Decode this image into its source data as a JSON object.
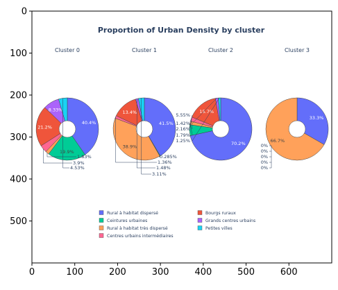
{
  "chart_data": {
    "type": "pie",
    "title": "Proportion of Urban Density by cluster",
    "categories": [
      "Rural à habitat dispersé",
      "Ceintures urbaines",
      "Rural à habitat très dispersé",
      "Centres urbains intermédiaires",
      "Bourgs ruraux",
      "Grands centres urbains",
      "Petites villes"
    ],
    "colors": [
      "#636efa",
      "#00cc96",
      "#ffa15a",
      "#ff6692",
      "#ef553b",
      "#ab63fa",
      "#19d3f3"
    ],
    "subplots": [
      {
        "name": "Cluster 0",
        "values": [
          40.4,
          19.9,
          1.83,
          3.9,
          21.2,
          8.33,
          4.53
        ]
      },
      {
        "name": "Cluster 1",
        "values": [
          41.5,
          0.285,
          38.9,
          1.36,
          13.4,
          1.48,
          3.11
        ]
      },
      {
        "name": "Cluster 2",
        "values": [
          70.2,
          5.55,
          1.79,
          2.16,
          15.7,
          1.42,
          1.25
        ]
      },
      {
        "name": "Cluster 3",
        "values": [
          33.3,
          0,
          66.7,
          0,
          0,
          0,
          0
        ]
      }
    ],
    "hole": 0.25,
    "legend_position": "bottom-center",
    "axes": {
      "x_ticks": [
        "0",
        "100",
        "200",
        "300",
        "400",
        "500",
        "600"
      ],
      "y_ticks": [
        "0",
        "100",
        "200",
        "300",
        "400",
        "500"
      ],
      "xlim": [
        0,
        700
      ],
      "ylim": [
        600,
        0
      ]
    }
  }
}
